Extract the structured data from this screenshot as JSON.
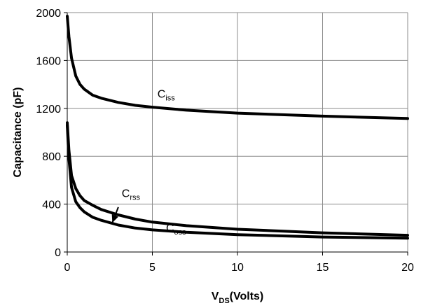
{
  "chart_data": {
    "type": "line",
    "xlabel": {
      "main": "V",
      "sub": "DS",
      "rest": "(Volts)"
    },
    "ylabel": "Capacitance (pF)",
    "xlim": [
      0,
      20
    ],
    "ylim": [
      0,
      2000
    ],
    "xticks": [
      0,
      5,
      10,
      15,
      20
    ],
    "yticks": [
      0,
      400,
      800,
      1200,
      1600,
      2000
    ],
    "grid": true,
    "line_color": "#000000",
    "series": [
      {
        "name": "Ciss",
        "x": [
          0,
          0.1,
          0.25,
          0.5,
          0.75,
          1,
          1.5,
          2,
          3,
          4,
          5,
          7,
          10,
          15,
          20
        ],
        "y": [
          1970,
          1800,
          1620,
          1470,
          1400,
          1360,
          1310,
          1285,
          1250,
          1225,
          1210,
          1185,
          1160,
          1135,
          1115
        ]
      },
      {
        "name": "Coss",
        "x": [
          0,
          0.1,
          0.25,
          0.5,
          0.75,
          1,
          1.5,
          2,
          3,
          4,
          5,
          7,
          10,
          15,
          20
        ],
        "y": [
          1080,
          850,
          640,
          530,
          470,
          430,
          390,
          355,
          310,
          275,
          250,
          220,
          190,
          160,
          140
        ]
      },
      {
        "name": "Crss",
        "x": [
          0,
          0.1,
          0.25,
          0.5,
          0.75,
          1,
          1.5,
          2,
          3,
          4,
          5,
          7,
          10,
          15,
          20
        ],
        "y": [
          1060,
          780,
          540,
          420,
          370,
          335,
          290,
          265,
          225,
          200,
          185,
          165,
          145,
          125,
          115
        ]
      }
    ],
    "annotations": [
      {
        "id": "ciss",
        "main": "C",
        "sub": "iss",
        "x": 5.3,
        "y": 1290
      },
      {
        "id": "crss",
        "main": "C",
        "sub": "rss",
        "x": 3.2,
        "y": 460
      },
      {
        "id": "coss",
        "main": "C",
        "sub": "oss",
        "x": 5.8,
        "y": 170
      }
    ],
    "arrow": {
      "from": [
        3.0,
        375
      ],
      "to": [
        2.65,
        245
      ]
    }
  }
}
